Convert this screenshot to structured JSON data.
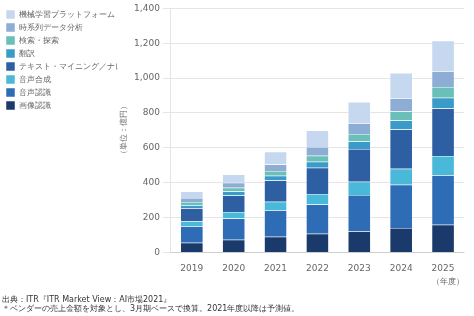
{
  "chart_data": {
    "type": "bar",
    "stacked": true,
    "xlabel": "（年度）",
    "ylabel": "（単位：億円）",
    "annotations": [
      "出典：ITR『ITR Market View：AI市場2021』",
      "＊ベンダーの売上金額を対象とし、3月期ベースで換算。2021年度以降は予測値。"
    ],
    "categories": [
      "2019",
      "2020",
      "2021",
      "2022",
      "2023",
      "2024",
      "2025"
    ],
    "series": [
      {
        "name": "画像認識",
        "color": "#1a3a6b",
        "values": [
          55,
          72,
          90,
          107,
          122,
          140,
          158
        ]
      },
      {
        "name": "音声認識",
        "color": "#2e6cb5",
        "values": [
          95,
          122,
          152,
          168,
          208,
          248,
          285
        ]
      },
      {
        "name": "音声合成",
        "color": "#4ab8d8",
        "values": [
          28,
          38,
          48,
          60,
          75,
          92,
          110
        ]
      },
      {
        "name": "テキスト・マイニング／ナレッジ活用",
        "color": "#2e5fa3",
        "values": [
          75,
          95,
          122,
          150,
          188,
          225,
          272
        ]
      },
      {
        "name": "翻訳",
        "color": "#3a9bc8",
        "values": [
          18,
          22,
          28,
          35,
          43,
          52,
          62
        ]
      },
      {
        "name": "検索・探索",
        "color": "#6abfb8",
        "values": [
          18,
          22,
          27,
          35,
          43,
          52,
          62
        ]
      },
      {
        "name": "時系列データ分析",
        "color": "#8eadd4",
        "values": [
          23,
          28,
          38,
          50,
          62,
          75,
          90
        ]
      },
      {
        "name": "機械学習プラットフォーム",
        "color": "#c5d8ef",
        "values": [
          38,
          48,
          72,
          95,
          122,
          145,
          175
        ]
      }
    ],
    "ylim": [
      0,
      1400
    ],
    "yticks": [
      0,
      200,
      400,
      600,
      800,
      {
        "value": 1000,
        "label": "1,000"
      },
      {
        "value": 1200,
        "label": "1,200"
      },
      {
        "value": 1400,
        "label": "1,400"
      }
    ],
    "grid": true,
    "legend": "upper left"
  }
}
